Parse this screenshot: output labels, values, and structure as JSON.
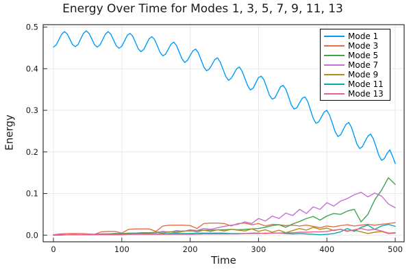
{
  "chart_data": {
    "type": "line",
    "title": "Energy Over Time for Modes 1, 3, 5, 7, 9, 11, 13",
    "xlabel": "Time",
    "ylabel": "Energy",
    "xlim": [
      0,
      500
    ],
    "ylim": [
      0,
      0.5
    ],
    "grid": true,
    "legend_position": "top-right",
    "xtick_values": [
      0,
      100,
      200,
      300,
      400,
      500
    ],
    "xtick_labels": [
      "0",
      "100",
      "200",
      "300",
      "400",
      "500"
    ],
    "ytick_values": [
      0.0,
      0.1,
      0.2,
      0.3,
      0.4,
      0.5
    ],
    "ytick_labels": [
      "0.0",
      "0.1",
      "0.2",
      "0.3",
      "0.4",
      "0.5"
    ],
    "series": [
      {
        "name": "Mode 1",
        "color": "#009AFA",
        "x_start": 0,
        "x_step": 4,
        "values": [
          0.452,
          0.457,
          0.47,
          0.483,
          0.489,
          0.484,
          0.471,
          0.458,
          0.453,
          0.458,
          0.472,
          0.485,
          0.491,
          0.485,
          0.472,
          0.458,
          0.452,
          0.457,
          0.47,
          0.483,
          0.489,
          0.483,
          0.469,
          0.455,
          0.449,
          0.454,
          0.467,
          0.48,
          0.485,
          0.478,
          0.463,
          0.448,
          0.441,
          0.446,
          0.459,
          0.472,
          0.477,
          0.47,
          0.455,
          0.439,
          0.431,
          0.435,
          0.447,
          0.459,
          0.464,
          0.456,
          0.44,
          0.424,
          0.415,
          0.42,
          0.432,
          0.443,
          0.447,
          0.438,
          0.421,
          0.404,
          0.395,
          0.399,
          0.41,
          0.422,
          0.426,
          0.416,
          0.399,
          0.382,
          0.372,
          0.377,
          0.388,
          0.4,
          0.404,
          0.394,
          0.377,
          0.36,
          0.349,
          0.353,
          0.366,
          0.379,
          0.382,
          0.373,
          0.355,
          0.336,
          0.327,
          0.33,
          0.343,
          0.356,
          0.36,
          0.351,
          0.332,
          0.313,
          0.303,
          0.306,
          0.318,
          0.329,
          0.332,
          0.321,
          0.301,
          0.281,
          0.269,
          0.272,
          0.284,
          0.296,
          0.3,
          0.288,
          0.269,
          0.249,
          0.237,
          0.241,
          0.254,
          0.266,
          0.271,
          0.259,
          0.239,
          0.219,
          0.208,
          0.213,
          0.226,
          0.238,
          0.243,
          0.231,
          0.212,
          0.192,
          0.18,
          0.184,
          0.196,
          0.205,
          0.19,
          0.172
        ]
      },
      {
        "name": "Mode 3",
        "color": "#E36F47",
        "x_start": 0,
        "x_step": 10,
        "values": [
          0.001,
          0.003,
          0.004,
          0.004,
          0.004,
          0.003,
          0.002,
          0.008,
          0.009,
          0.009,
          0.005,
          0.014,
          0.015,
          0.015,
          0.015,
          0.009,
          0.022,
          0.024,
          0.024,
          0.024,
          0.023,
          0.016,
          0.028,
          0.029,
          0.029,
          0.028,
          0.022,
          0.028,
          0.029,
          0.025,
          0.028,
          0.022,
          0.026,
          0.025,
          0.023,
          0.024,
          0.022,
          0.024,
          0.021,
          0.018,
          0.022,
          0.02,
          0.023,
          0.025,
          0.022,
          0.024,
          0.026,
          0.024,
          0.026,
          0.028,
          0.03
        ]
      },
      {
        "name": "Mode 5",
        "color": "#3DA44E",
        "x_start": 0,
        "x_step": 10,
        "values": [
          0.0,
          0.0,
          0.001,
          0.001,
          0.001,
          0.002,
          0.002,
          0.003,
          0.003,
          0.004,
          0.004,
          0.005,
          0.005,
          0.006,
          0.006,
          0.007,
          0.008,
          0.008,
          0.009,
          0.01,
          0.01,
          0.011,
          0.012,
          0.012,
          0.013,
          0.013,
          0.014,
          0.013,
          0.014,
          0.015,
          0.016,
          0.019,
          0.023,
          0.025,
          0.019,
          0.027,
          0.033,
          0.04,
          0.045,
          0.036,
          0.046,
          0.052,
          0.05,
          0.058,
          0.062,
          0.032,
          0.05,
          0.085,
          0.108,
          0.138,
          0.122
        ]
      },
      {
        "name": "Mode 7",
        "color": "#C371D2",
        "x_start": 0,
        "x_step": 10,
        "values": [
          0.001,
          0.001,
          0.001,
          0.002,
          0.001,
          0.002,
          0.002,
          0.002,
          0.003,
          0.002,
          0.003,
          0.003,
          0.004,
          0.004,
          0.005,
          0.006,
          0.009,
          0.007,
          0.011,
          0.009,
          0.013,
          0.011,
          0.016,
          0.014,
          0.018,
          0.021,
          0.024,
          0.026,
          0.032,
          0.028,
          0.04,
          0.034,
          0.046,
          0.04,
          0.053,
          0.047,
          0.062,
          0.052,
          0.068,
          0.062,
          0.078,
          0.07,
          0.082,
          0.088,
          0.097,
          0.103,
          0.092,
          0.101,
          0.094,
          0.075,
          0.066
        ]
      },
      {
        "name": "Mode 9",
        "color": "#AC8E18",
        "x_start": 0,
        "x_step": 10,
        "values": [
          0.0,
          0.001,
          0.001,
          0.001,
          0.001,
          0.001,
          0.002,
          0.002,
          0.002,
          0.002,
          0.003,
          0.003,
          0.003,
          0.004,
          0.005,
          0.007,
          0.005,
          0.008,
          0.006,
          0.009,
          0.011,
          0.008,
          0.012,
          0.009,
          0.013,
          0.01,
          0.014,
          0.012,
          0.01,
          0.015,
          0.009,
          0.013,
          0.007,
          0.012,
          0.006,
          0.011,
          0.016,
          0.012,
          0.019,
          0.014,
          0.017,
          0.011,
          0.014,
          0.01,
          0.012,
          0.008,
          0.004,
          0.007,
          0.009,
          0.004,
          0.005
        ]
      },
      {
        "name": "Mode 11",
        "color": "#00AAAE",
        "x_start": 0,
        "x_step": 10,
        "values": [
          0.0,
          0.001,
          0.001,
          0.001,
          0.001,
          0.001,
          0.001,
          0.002,
          0.002,
          0.002,
          0.002,
          0.002,
          0.003,
          0.003,
          0.003,
          0.003,
          0.003,
          0.004,
          0.004,
          0.004,
          0.004,
          0.005,
          0.005,
          0.005,
          0.005,
          0.005,
          0.004,
          0.004,
          0.004,
          0.005,
          0.005,
          0.004,
          0.005,
          0.005,
          0.004,
          0.003,
          0.004,
          0.003,
          0.002,
          0.001,
          0.002,
          0.004,
          0.008,
          0.016,
          0.009,
          0.019,
          0.024,
          0.014,
          0.022,
          0.026,
          0.021
        ]
      },
      {
        "name": "Mode 13",
        "color": "#ED5E93",
        "x_start": 0,
        "x_step": 10,
        "values": [
          0.001,
          0.001,
          0.001,
          0.001,
          0.001,
          0.001,
          0.001,
          0.001,
          0.001,
          0.001,
          0.001,
          0.002,
          0.002,
          0.002,
          0.002,
          0.002,
          0.002,
          0.002,
          0.002,
          0.002,
          0.002,
          0.002,
          0.003,
          0.003,
          0.003,
          0.003,
          0.003,
          0.003,
          0.004,
          0.004,
          0.004,
          0.005,
          0.005,
          0.005,
          0.006,
          0.006,
          0.007,
          0.007,
          0.008,
          0.008,
          0.009,
          0.012,
          0.014,
          0.009,
          0.013,
          0.016,
          0.012,
          0.014,
          0.01,
          0.005,
          0.006
        ]
      }
    ],
    "style_colors": {
      "grid": "#e9e9e9",
      "frame": "#2e2e2e",
      "tick_label": "#191919",
      "background": "#ffffff"
    }
  }
}
